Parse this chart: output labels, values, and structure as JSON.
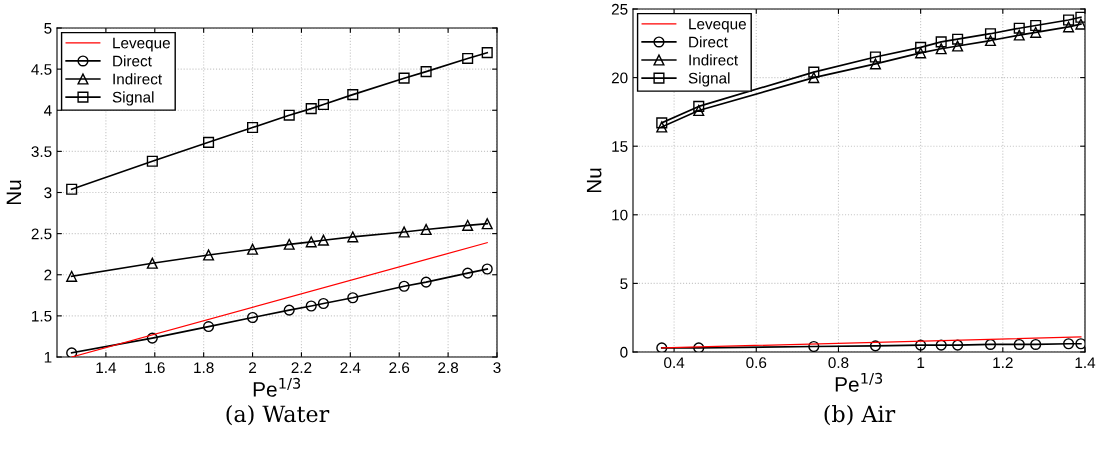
{
  "chart_data": [
    {
      "type": "line",
      "title": "(a) Water",
      "xlabel": "Pe$^{1/3}$",
      "ylabel": "Nu",
      "xlim": [
        1.2,
        3
      ],
      "xticks": [
        1.4,
        1.6,
        1.8,
        2,
        2.2,
        2.4,
        2.6,
        2.8,
        3
      ],
      "ylim": [
        1,
        5
      ],
      "yticks": [
        1,
        1.5,
        2,
        2.5,
        3,
        3.5,
        4,
        4.5,
        5
      ],
      "grid": true,
      "legend": "top left",
      "series": [
        {
          "name": "Leveque",
          "color": "#ff0000",
          "marker": "none",
          "x": [
            1.26,
            2.96
          ],
          "values": [
            1.0,
            2.39
          ]
        },
        {
          "name": "Direct",
          "color": "#000000",
          "marker": "circle",
          "x": [
            1.26,
            1.59,
            1.82,
            2.0,
            2.15,
            2.24,
            2.29,
            2.41,
            2.62,
            2.71,
            2.88,
            2.96
          ],
          "values": [
            1.05,
            1.23,
            1.37,
            1.48,
            1.57,
            1.62,
            1.65,
            1.72,
            1.86,
            1.91,
            2.02,
            2.07
          ]
        },
        {
          "name": "Indirect",
          "color": "#000000",
          "marker": "triangle",
          "x": [
            1.26,
            1.59,
            1.82,
            2.0,
            2.15,
            2.24,
            2.29,
            2.41,
            2.62,
            2.71,
            2.88,
            2.96
          ],
          "values": [
            1.98,
            2.14,
            2.24,
            2.31,
            2.37,
            2.4,
            2.42,
            2.46,
            2.52,
            2.55,
            2.6,
            2.62
          ]
        },
        {
          "name": "Signal",
          "color": "#000000",
          "marker": "square",
          "x": [
            1.26,
            1.59,
            1.82,
            2.0,
            2.15,
            2.24,
            2.29,
            2.41,
            2.62,
            2.71,
            2.88,
            2.96
          ],
          "values": [
            3.04,
            3.38,
            3.61,
            3.79,
            3.94,
            4.02,
            4.07,
            4.19,
            4.39,
            4.47,
            4.63,
            4.7
          ]
        }
      ]
    },
    {
      "type": "line",
      "title": "(b) Air",
      "xlabel": "Pe$^{1/3}$",
      "ylabel": "Nu",
      "xlim": [
        0.3,
        1.4
      ],
      "xticks": [
        0.4,
        0.6,
        0.8,
        1,
        1.2,
        1.4
      ],
      "ylim": [
        0,
        25
      ],
      "yticks": [
        0,
        5,
        10,
        15,
        20,
        25
      ],
      "grid": true,
      "legend": "top left",
      "series": [
        {
          "name": "Leveque",
          "color": "#ff0000",
          "marker": "none",
          "x": [
            0.37,
            1.39
          ],
          "values": [
            0.3,
            1.1
          ]
        },
        {
          "name": "Direct",
          "color": "#000000",
          "marker": "circle",
          "x": [
            0.37,
            0.46,
            0.74,
            0.89,
            1.0,
            1.05,
            1.09,
            1.17,
            1.24,
            1.28,
            1.36,
            1.39
          ],
          "values": [
            0.3,
            0.3,
            0.4,
            0.45,
            0.5,
            0.5,
            0.5,
            0.55,
            0.55,
            0.55,
            0.6,
            0.6
          ]
        },
        {
          "name": "Indirect",
          "color": "#000000",
          "marker": "triangle",
          "x": [
            0.37,
            0.46,
            0.74,
            0.89,
            1.0,
            1.05,
            1.09,
            1.17,
            1.24,
            1.28,
            1.36,
            1.39
          ],
          "values": [
            16.4,
            17.6,
            20.0,
            21.0,
            21.8,
            22.1,
            22.3,
            22.7,
            23.1,
            23.3,
            23.7,
            23.9
          ]
        },
        {
          "name": "Signal",
          "color": "#000000",
          "marker": "square",
          "x": [
            0.37,
            0.46,
            0.74,
            0.89,
            1.0,
            1.05,
            1.09,
            1.17,
            1.24,
            1.28,
            1.36,
            1.39
          ],
          "values": [
            16.7,
            17.9,
            20.4,
            21.5,
            22.2,
            22.6,
            22.8,
            23.2,
            23.6,
            23.8,
            24.2,
            24.4
          ]
        }
      ]
    }
  ]
}
